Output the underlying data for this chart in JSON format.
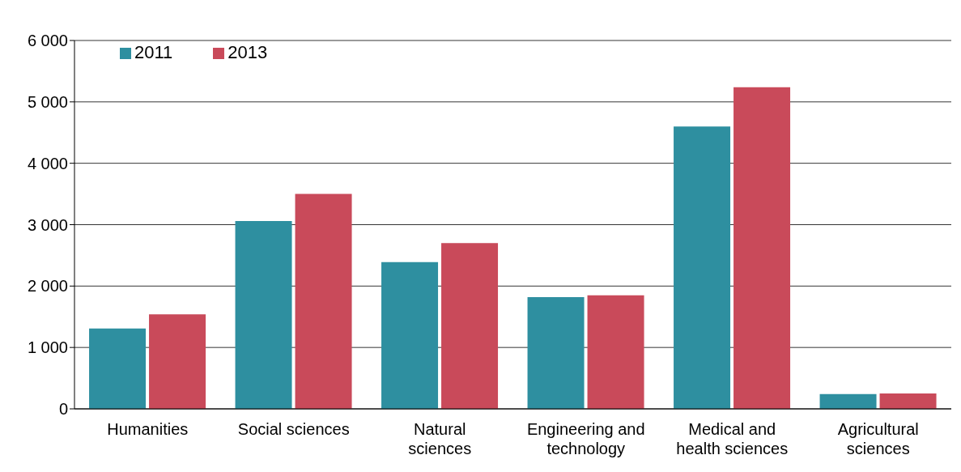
{
  "chart_data": {
    "type": "bar",
    "categories": [
      "Humanities",
      "Social sciences",
      "Natural sciences",
      "Engineering and technology",
      "Medical and health sciences",
      "Agricultural sciences"
    ],
    "series": [
      {
        "name": "2011",
        "color": "#2e8fa0",
        "values": [
          1310,
          3060,
          2390,
          1820,
          4600,
          240
        ]
      },
      {
        "name": "2013",
        "color": "#c94a5a",
        "values": [
          1540,
          3500,
          2700,
          1850,
          5240,
          250
        ]
      }
    ],
    "ylim": [
      0,
      6000
    ],
    "yticks": [
      0,
      {
        "value": 1000,
        "label": "1 000"
      },
      {
        "value": 2000,
        "label": "2 000"
      },
      {
        "value": 3000,
        "label": "3 000"
      },
      {
        "value": 4000,
        "label": "4 000"
      },
      {
        "value": 5000,
        "label": "5 000"
      },
      {
        "value": 6000,
        "label": "6 000"
      }
    ],
    "grid": "y",
    "legend": "top left"
  }
}
